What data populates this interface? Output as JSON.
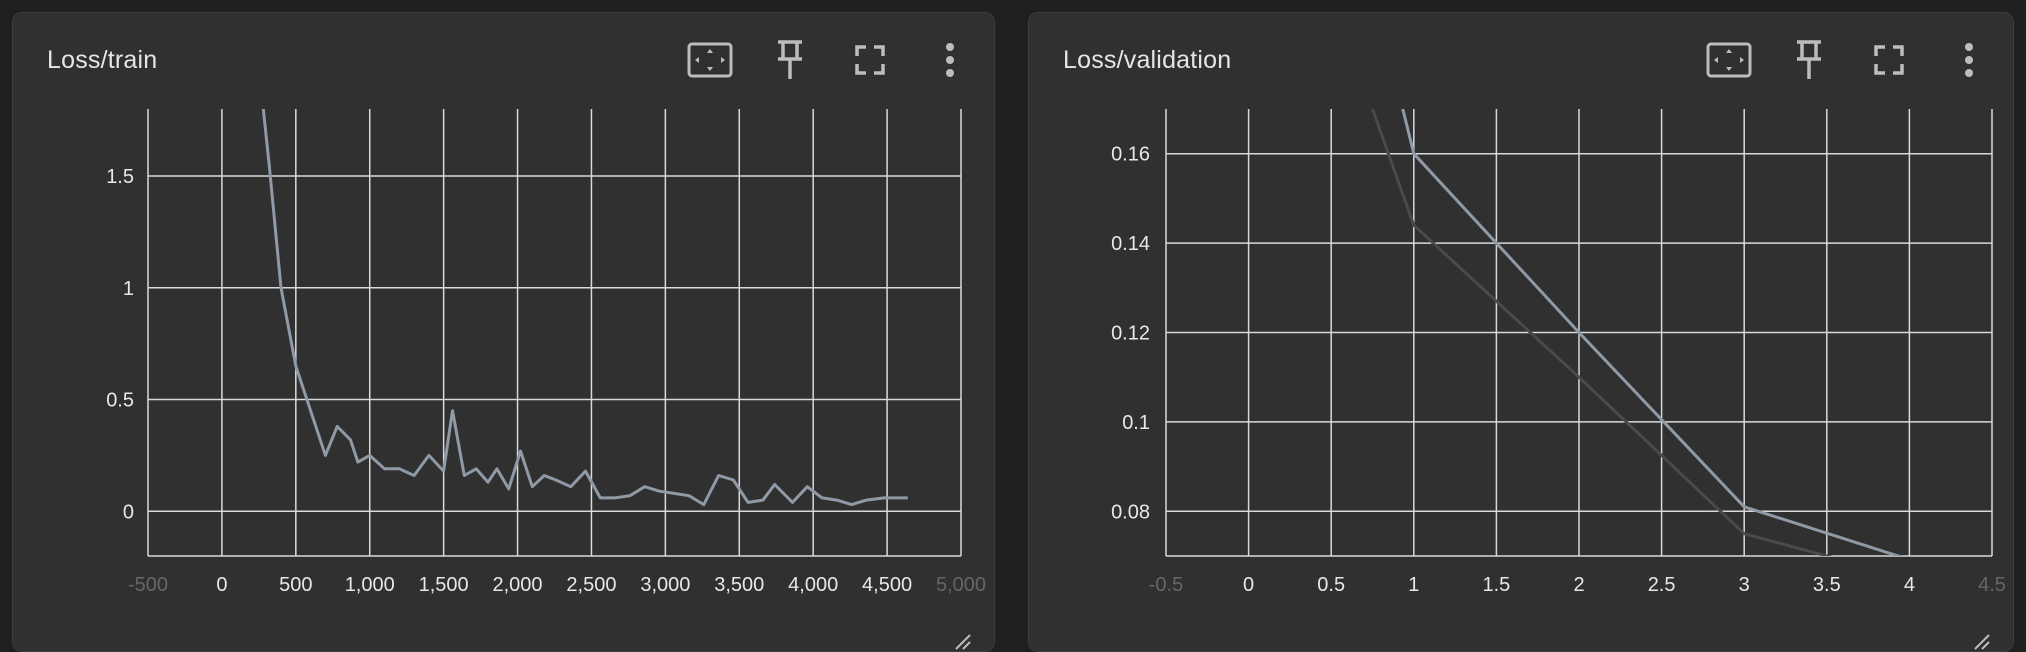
{
  "cards": [
    {
      "title": "Loss/train",
      "tools": [
        "fit-domain-icon",
        "pin-icon",
        "fullscreen-icon",
        "more-vert-icon"
      ]
    },
    {
      "title": "Loss/validation",
      "tools": [
        "fit-domain-icon",
        "pin-icon",
        "fullscreen-icon",
        "more-vert-icon"
      ]
    }
  ],
  "colors": {
    "background": "#202020",
    "card": "#303030",
    "grid": "#d9d9d9",
    "line_main": "#8f9aa6",
    "line_secondary": "#4a4a4a"
  },
  "chart_data": [
    {
      "type": "line",
      "title": "Loss/train",
      "xlim": [
        -500,
        5000
      ],
      "ylim": [
        -0.2,
        1.8
      ],
      "x_ticks": [
        -500,
        0,
        500,
        1000,
        1500,
        2000,
        2500,
        3000,
        3500,
        4000,
        4500,
        5000
      ],
      "x_tick_labels": [
        "-500",
        "0",
        "500",
        "1,000",
        "1,500",
        "2,000",
        "2,500",
        "3,000",
        "3,500",
        "4,000",
        "4,500",
        "5,000"
      ],
      "y_ticks": [
        0,
        0.5,
        1,
        1.5
      ],
      "y_tick_labels": [
        "0",
        "0.5",
        "1",
        "1.5"
      ],
      "grid": true,
      "series": [
        {
          "x": [
            280,
            320,
            400,
            500,
            600,
            700,
            780,
            870,
            920,
            1000,
            1100,
            1200,
            1300,
            1400,
            1500,
            1560,
            1640,
            1720,
            1800,
            1860,
            1940,
            2020,
            2100,
            2180,
            2260,
            2360,
            2460,
            2560,
            2660,
            2760,
            2860,
            2960,
            3060,
            3160,
            3260,
            3360,
            3460,
            3560,
            3660,
            3740,
            3860,
            3960,
            4060,
            4160,
            4260,
            4360,
            4480,
            4560,
            4640
          ],
          "y": [
            1.8,
            1.55,
            1.0,
            0.65,
            0.45,
            0.25,
            0.38,
            0.32,
            0.22,
            0.25,
            0.19,
            0.19,
            0.16,
            0.25,
            0.18,
            0.45,
            0.16,
            0.19,
            0.13,
            0.19,
            0.1,
            0.27,
            0.11,
            0.16,
            0.14,
            0.11,
            0.18,
            0.06,
            0.06,
            0.07,
            0.11,
            0.09,
            0.08,
            0.07,
            0.03,
            0.16,
            0.14,
            0.04,
            0.05,
            0.12,
            0.04,
            0.11,
            0.06,
            0.05,
            0.03,
            0.05,
            0.06,
            0.06,
            0.06
          ]
        }
      ]
    },
    {
      "type": "line",
      "title": "Loss/validation",
      "xlim": [
        -0.5,
        4.5
      ],
      "ylim": [
        0.07,
        0.17
      ],
      "x_ticks": [
        -0.5,
        0,
        0.5,
        1,
        1.5,
        2,
        2.5,
        3,
        3.5,
        4,
        4.5
      ],
      "x_tick_labels": [
        "-0.5",
        "0",
        "0.5",
        "1",
        "1.5",
        "2",
        "2.5",
        "3",
        "3.5",
        "4",
        "4.5"
      ],
      "y_ticks": [
        0.08,
        0.1,
        0.12,
        0.14,
        0.16
      ],
      "y_tick_labels": [
        "0.08",
        "0.1",
        "0.12",
        "0.14",
        "0.16"
      ],
      "grid": true,
      "series": [
        {
          "x": [
            0.8,
            1,
            2,
            3,
            4.1
          ],
          "y": [
            0.19,
            0.16,
            0.12,
            0.081,
            0.068
          ]
        },
        {
          "x": [
            0.75,
            1,
            2,
            3,
            3.6
          ],
          "y": [
            0.17,
            0.144,
            0.11,
            0.075,
            0.069
          ]
        }
      ]
    }
  ]
}
